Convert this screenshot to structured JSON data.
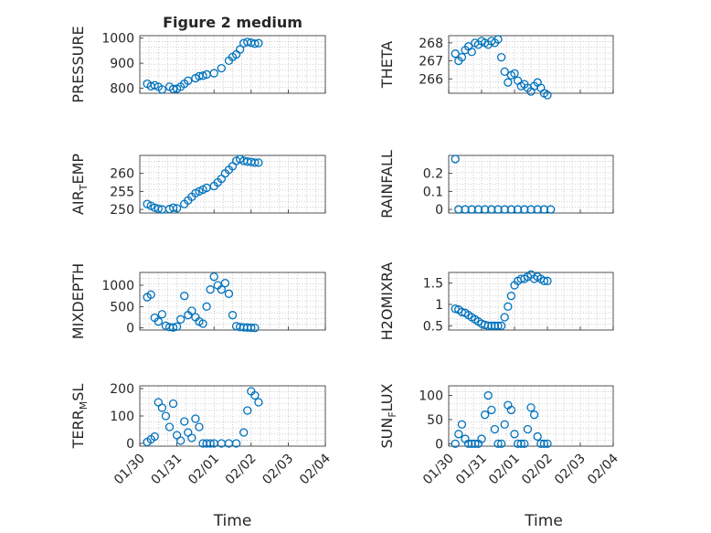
{
  "figure": {
    "title": "Figure 2 medium",
    "xlabel": "Time",
    "x_tick_labels": [
      "01/30",
      "01/31",
      "02/01",
      "02/02",
      "02/03",
      "02/04"
    ],
    "marker_color": "#0072BD",
    "grid": "dotted minor grid on all panels"
  },
  "chart_data": [
    {
      "type": "scatter",
      "ylabel": "PRESSURE",
      "title": "Figure 2 medium",
      "ylim": [
        780,
        1010
      ],
      "yticks": [
        800,
        900,
        1000
      ],
      "x": [
        0.2,
        0.3,
        0.4,
        0.5,
        0.6,
        0.8,
        0.9,
        1.0,
        1.1,
        1.2,
        1.3,
        1.5,
        1.6,
        1.7,
        1.8,
        2.0,
        2.2,
        2.4,
        2.5,
        2.6,
        2.7,
        2.8,
        2.9,
        3.0,
        3.1,
        3.2
      ],
      "y": [
        818,
        808,
        812,
        806,
        795,
        806,
        797,
        798,
        806,
        818,
        830,
        840,
        848,
        850,
        855,
        860,
        880,
        910,
        925,
        935,
        955,
        980,
        985,
        982,
        978,
        980
      ]
    },
    {
      "type": "scatter",
      "ylabel": "THETA",
      "ylim": [
        265.2,
        268.4
      ],
      "yticks": [
        266,
        267,
        268
      ],
      "x": [
        0.2,
        0.3,
        0.4,
        0.5,
        0.6,
        0.7,
        0.8,
        0.9,
        1.0,
        1.1,
        1.2,
        1.3,
        1.4,
        1.5,
        1.6,
        1.7,
        1.8,
        1.9,
        2.0,
        2.1,
        2.2,
        2.3,
        2.4,
        2.5,
        2.6,
        2.7,
        2.8,
        2.9,
        3.0
      ],
      "y": [
        267.4,
        267.0,
        267.2,
        267.6,
        267.8,
        267.5,
        268.0,
        267.9,
        268.1,
        268.0,
        267.9,
        268.1,
        268.0,
        268.2,
        267.2,
        266.4,
        265.8,
        266.2,
        266.3,
        265.9,
        265.6,
        265.7,
        265.5,
        265.3,
        265.6,
        265.8,
        265.5,
        265.2,
        265.1
      ]
    },
    {
      "type": "scatter",
      "ylabel": "AIR_TEMP",
      "ylim": [
        249,
        265
      ],
      "yticks": [
        250,
        255,
        260
      ],
      "x": [
        0.2,
        0.3,
        0.4,
        0.5,
        0.6,
        0.8,
        0.9,
        1.0,
        1.2,
        1.3,
        1.4,
        1.5,
        1.6,
        1.7,
        1.8,
        2.0,
        2.1,
        2.2,
        2.3,
        2.4,
        2.5,
        2.6,
        2.7,
        2.8,
        2.9,
        3.0,
        3.1,
        3.2
      ],
      "y": [
        251.5,
        251.0,
        250.5,
        250.2,
        250.0,
        250.1,
        250.5,
        250.3,
        251.5,
        252.5,
        253.5,
        254.5,
        255.0,
        255.5,
        256.0,
        256.5,
        257.5,
        258.5,
        260.0,
        261.0,
        262.0,
        263.5,
        264.0,
        263.5,
        263.3,
        263.2,
        263.0,
        263.0
      ]
    },
    {
      "type": "scatter",
      "ylabel": "RAINFALL",
      "ylim": [
        -0.02,
        0.3
      ],
      "yticks": [
        0,
        0.1,
        0.2
      ],
      "x": [
        0.2,
        0.3,
        0.5,
        0.7,
        0.9,
        1.1,
        1.3,
        1.5,
        1.7,
        1.9,
        2.1,
        2.3,
        2.5,
        2.7,
        2.9,
        3.1
      ],
      "y": [
        0.28,
        0,
        0,
        0,
        0,
        0,
        0,
        0,
        0,
        0,
        0,
        0,
        0,
        0,
        0,
        0
      ]
    },
    {
      "type": "scatter",
      "ylabel": "MIXDEPTH",
      "ylim": [
        -50,
        1300
      ],
      "yticks": [
        0,
        500,
        1000
      ],
      "x": [
        0.2,
        0.3,
        0.4,
        0.5,
        0.6,
        0.7,
        0.8,
        0.9,
        1.0,
        1.1,
        1.2,
        1.3,
        1.4,
        1.5,
        1.6,
        1.7,
        1.8,
        1.9,
        2.0,
        2.1,
        2.2,
        2.3,
        2.4,
        2.5,
        2.6,
        2.7,
        2.8,
        2.9,
        3.0,
        3.1
      ],
      "y": [
        720,
        780,
        240,
        150,
        320,
        50,
        20,
        10,
        30,
        200,
        750,
        300,
        400,
        250,
        150,
        100,
        500,
        900,
        1200,
        1000,
        900,
        1050,
        800,
        300,
        40,
        20,
        15,
        10,
        5,
        0
      ]
    },
    {
      "type": "scatter",
      "ylabel": "H2OMIXRA",
      "ylim": [
        0.4,
        1.75
      ],
      "yticks": [
        0.5,
        1,
        1.5
      ],
      "x": [
        0.2,
        0.3,
        0.4,
        0.5,
        0.6,
        0.7,
        0.8,
        0.9,
        1.0,
        1.1,
        1.2,
        1.3,
        1.4,
        1.5,
        1.6,
        1.7,
        1.8,
        1.9,
        2.0,
        2.1,
        2.2,
        2.3,
        2.4,
        2.5,
        2.6,
        2.7,
        2.8,
        2.9,
        3.0
      ],
      "y": [
        0.9,
        0.88,
        0.82,
        0.8,
        0.75,
        0.7,
        0.65,
        0.6,
        0.55,
        0.52,
        0.5,
        0.5,
        0.5,
        0.5,
        0.5,
        0.7,
        0.95,
        1.2,
        1.45,
        1.55,
        1.6,
        1.6,
        1.65,
        1.7,
        1.6,
        1.65,
        1.6,
        1.55,
        1.55
      ]
    },
    {
      "type": "scatter",
      "ylabel": "TERR_MSL",
      "ylim": [
        -10,
        210
      ],
      "yticks": [
        0,
        100,
        200
      ],
      "x": [
        0.2,
        0.3,
        0.4,
        0.5,
        0.6,
        0.7,
        0.8,
        0.9,
        1.0,
        1.1,
        1.2,
        1.3,
        1.4,
        1.5,
        1.6,
        1.7,
        1.8,
        1.9,
        2.0,
        2.2,
        2.4,
        2.6,
        2.8,
        2.9,
        3.0,
        3.1,
        3.2
      ],
      "y": [
        5,
        15,
        25,
        150,
        130,
        100,
        60,
        145,
        30,
        10,
        80,
        40,
        20,
        90,
        60,
        0,
        0,
        0,
        0,
        0,
        0,
        0,
        40,
        120,
        190,
        175,
        150
      ]
    },
    {
      "type": "scatter",
      "ylabel": "SUN_FLUX",
      "ylim": [
        -5,
        120
      ],
      "yticks": [
        0,
        50,
        100
      ],
      "x": [
        0.2,
        0.3,
        0.4,
        0.5,
        0.6,
        0.7,
        0.8,
        0.9,
        1.0,
        1.1,
        1.2,
        1.3,
        1.4,
        1.5,
        1.6,
        1.7,
        1.8,
        1.9,
        2.0,
        2.1,
        2.2,
        2.3,
        2.4,
        2.5,
        2.6,
        2.7,
        2.8,
        2.9,
        3.0
      ],
      "y": [
        0,
        20,
        40,
        10,
        0,
        0,
        0,
        0,
        10,
        60,
        100,
        70,
        30,
        0,
        0,
        40,
        80,
        70,
        20,
        0,
        0,
        0,
        30,
        75,
        60,
        15,
        0,
        0,
        0
      ]
    }
  ]
}
